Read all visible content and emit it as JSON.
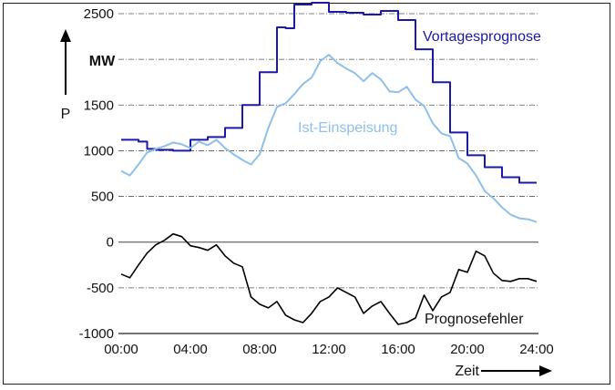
{
  "chart_data": {
    "type": "line",
    "title": "",
    "xlabel": "Zeit",
    "ylabel": "P",
    "yunit_label": "MW",
    "ylim": [
      -1000,
      2600
    ],
    "xlim": [
      0,
      24
    ],
    "grid": true,
    "x_ticks": [
      0,
      4,
      8,
      12,
      16,
      20,
      24
    ],
    "x_tick_labels": [
      "00:00",
      "04:00",
      "08:00",
      "12:00",
      "16:00",
      "20:00",
      "24:00"
    ],
    "y_ticks": [
      -1000,
      -500,
      0,
      500,
      1000,
      1500,
      2000,
      2500
    ],
    "y_tick_labels": [
      "-1000",
      "-500",
      "0",
      "500",
      "1000",
      "1500",
      "2000",
      "2500"
    ],
    "series": [
      {
        "name": "Vortagesprognose",
        "color": "#1a1aa6",
        "step": true,
        "x": [
          0,
          1,
          1.5,
          2,
          3,
          4,
          5,
          6,
          7,
          8,
          9,
          9.5,
          10,
          11,
          12,
          12.5,
          13,
          14,
          15,
          16,
          17,
          18,
          19,
          20,
          21,
          22,
          23,
          24
        ],
        "y": [
          1120,
          1100,
          1020,
          1010,
          1000,
          1120,
          1150,
          1250,
          1500,
          1860,
          2350,
          2340,
          2600,
          2620,
          2520,
          2520,
          2510,
          2490,
          2530,
          2430,
          2110,
          1750,
          1200,
          950,
          820,
          710,
          650,
          650
        ]
      },
      {
        "name": "Ist-Einspeisung",
        "color": "#8fc0ea",
        "step": false,
        "x": [
          0,
          0.5,
          1,
          1.5,
          2,
          2.5,
          3,
          3.5,
          4,
          4.5,
          5,
          5.5,
          6,
          6.5,
          7,
          7.5,
          8,
          8.5,
          9,
          9.5,
          10,
          10.5,
          11,
          11.5,
          12,
          12.5,
          13,
          13.5,
          14,
          14.5,
          15,
          15.5,
          16,
          16.5,
          17,
          17.5,
          18,
          18.5,
          19,
          19.5,
          20,
          20.5,
          21,
          21.5,
          22,
          22.5,
          23,
          23.5,
          24
        ],
        "y": [
          780,
          730,
          850,
          980,
          1020,
          1050,
          1090,
          1070,
          1030,
          1100,
          1060,
          1120,
          1030,
          960,
          900,
          850,
          960,
          1250,
          1480,
          1520,
          1620,
          1730,
          1800,
          1980,
          2050,
          1960,
          1900,
          1850,
          1760,
          1850,
          1780,
          1650,
          1640,
          1700,
          1560,
          1490,
          1300,
          1190,
          1160,
          920,
          860,
          730,
          560,
          480,
          380,
          300,
          260,
          250,
          220
        ]
      },
      {
        "name": "Prognosefehler",
        "color": "#000000",
        "step": false,
        "x": [
          0,
          0.5,
          1,
          1.5,
          2,
          2.5,
          3,
          3.5,
          4,
          4.5,
          5,
          5.5,
          6,
          6.5,
          7,
          7.5,
          8,
          8.5,
          9,
          9.5,
          10,
          10.5,
          11,
          11.5,
          12,
          12.5,
          13,
          13.5,
          14,
          14.5,
          15,
          15.5,
          16,
          16.5,
          17,
          17.5,
          18,
          18.5,
          19,
          19.5,
          20,
          20.5,
          21,
          21.5,
          22,
          22.5,
          23,
          23.5,
          24
        ],
        "y": [
          -350,
          -390,
          -250,
          -120,
          -30,
          20,
          90,
          60,
          -40,
          -60,
          -90,
          -30,
          -150,
          -230,
          -270,
          -600,
          -680,
          -720,
          -650,
          -800,
          -850,
          -880,
          -780,
          -650,
          -600,
          -500,
          -550,
          -600,
          -780,
          -700,
          -650,
          -780,
          -900,
          -880,
          -830,
          -580,
          -750,
          -600,
          -550,
          -300,
          -330,
          -100,
          -150,
          -340,
          -420,
          -430,
          -400,
          -400,
          -430
        ]
      }
    ]
  }
}
